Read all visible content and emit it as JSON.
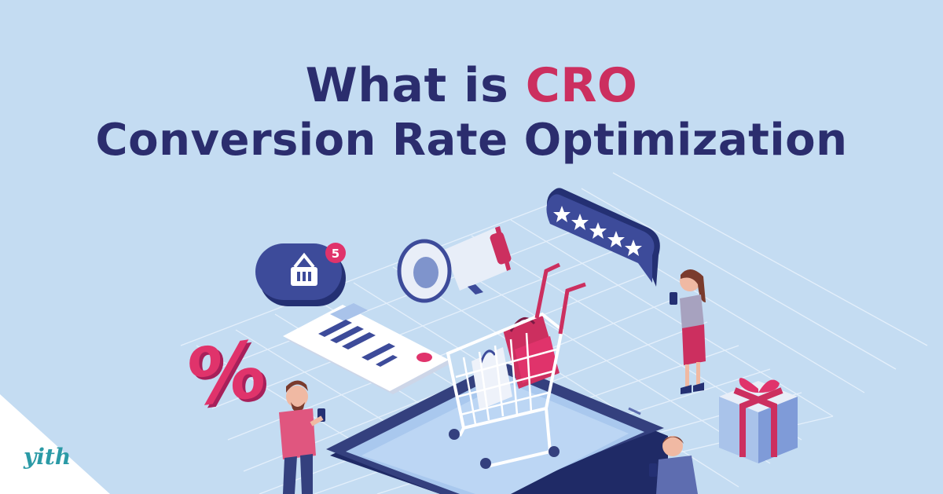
{
  "headline": {
    "line1_prefix": "What is",
    "line1_accent": "CRO",
    "line2": "Conversion Rate Optimization"
  },
  "illustration": {
    "cart_badge_count": "5",
    "review_stars": 5,
    "percent_symbol": "%",
    "icons": [
      "basket-icon",
      "megaphone-icon",
      "star-icon",
      "credit-card-icon",
      "shopping-cart-icon",
      "smartphone-icon",
      "gift-icon",
      "percent-icon",
      "shopping-bag-icon"
    ]
  },
  "brand": {
    "logo_text": "yith"
  },
  "colors": {
    "background": "#c4dcf2",
    "headline": "#2b2d6e",
    "accent": "#cc2f5f",
    "navy": "#34407e",
    "logo": "#2b9aa6"
  }
}
